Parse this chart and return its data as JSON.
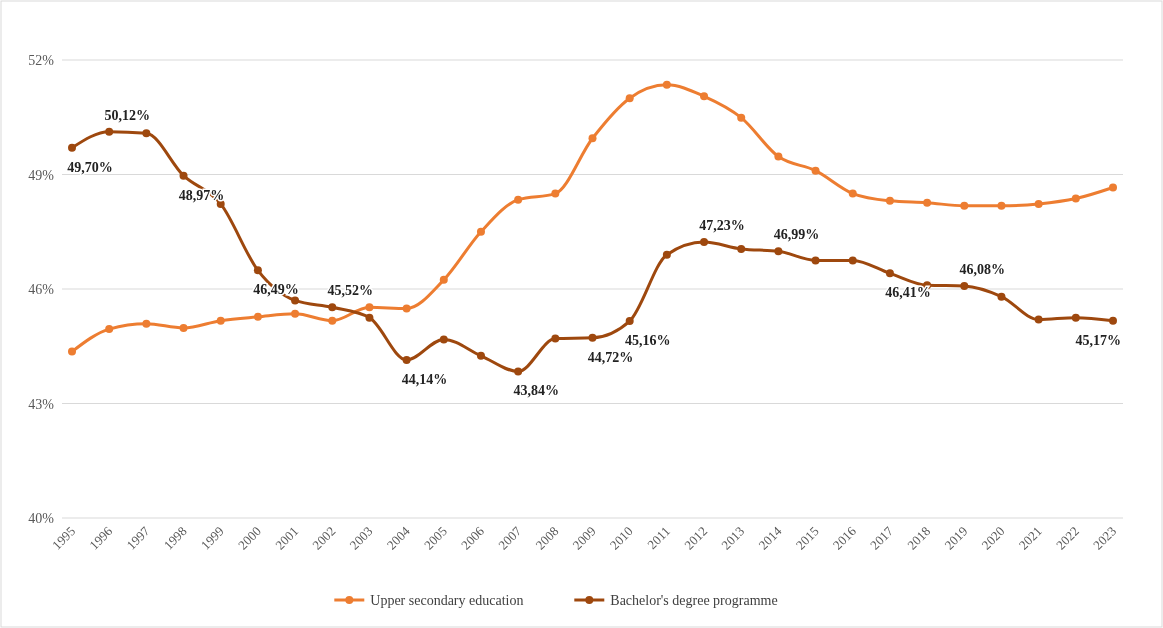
{
  "chart_data": {
    "type": "line",
    "categories": [
      "1995",
      "1996",
      "1997",
      "1998",
      "1999",
      "2000",
      "2001",
      "2002",
      "2003",
      "2004",
      "2005",
      "2006",
      "2007",
      "2008",
      "2009",
      "2010",
      "2011",
      "2012",
      "2013",
      "2014",
      "2015",
      "2016",
      "2017",
      "2018",
      "2019",
      "2020",
      "2021",
      "2022",
      "2023"
    ],
    "series": [
      {
        "name": "Upper secondary education",
        "color": "#ed7d31",
        "values": [
          44.36,
          44.95,
          45.09,
          44.98,
          45.17,
          45.27,
          45.35,
          45.17,
          45.52,
          45.49,
          46.24,
          47.5,
          48.34,
          48.5,
          49.95,
          51.0,
          51.35,
          51.05,
          50.49,
          49.47,
          49.1,
          48.5,
          48.31,
          48.26,
          48.18,
          48.18,
          48.23,
          48.37,
          48.66
        ]
      },
      {
        "name": "Bachelor's degree programme",
        "color": "#9e480e",
        "values": [
          49.7,
          50.12,
          50.08,
          48.97,
          48.23,
          46.49,
          45.7,
          45.52,
          45.25,
          44.14,
          44.68,
          44.25,
          43.84,
          44.7,
          44.72,
          45.16,
          46.9,
          47.23,
          47.05,
          46.99,
          46.75,
          46.75,
          46.41,
          46.1,
          46.08,
          45.8,
          45.2,
          45.25,
          45.17
        ],
        "value_labels": [
          "49,70%",
          "50,12%",
          null,
          "48,97%",
          null,
          "46,49%",
          null,
          "45,52%",
          null,
          "44,14%",
          null,
          null,
          "43,84%",
          null,
          "44,72%",
          "45,16%",
          null,
          "47,23%",
          null,
          "46,99%",
          null,
          null,
          "46,41%",
          null,
          "46,08%",
          null,
          null,
          null,
          "45,17%"
        ]
      }
    ],
    "ylim": [
      40,
      52
    ],
    "yticks": [
      {
        "value": 40,
        "label": "40%"
      },
      {
        "value": 43,
        "label": "43%"
      },
      {
        "value": 46,
        "label": "46%"
      },
      {
        "value": 49,
        "label": "49%"
      },
      {
        "value": 52,
        "label": "52%"
      }
    ],
    "grid": "y",
    "legend": "bottom",
    "marker": "circle",
    "line_style": "solid"
  }
}
